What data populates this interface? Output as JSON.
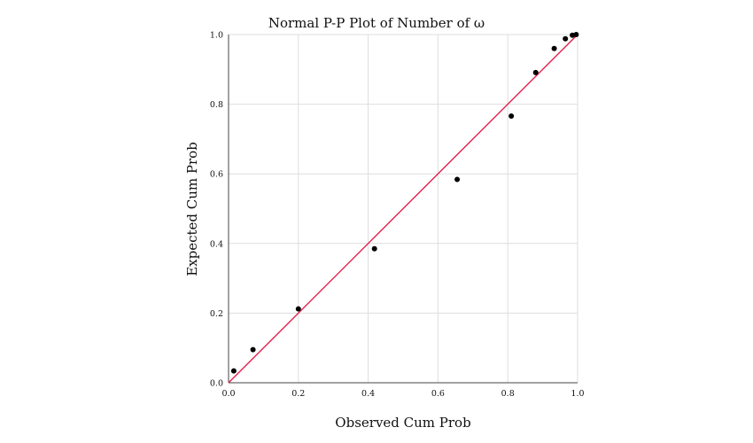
{
  "chart_data": {
    "type": "scatter",
    "title": "Normal P-P Plot of Number of ω",
    "xlabel": "Observed Cum Prob",
    "ylabel": "Expected Cum Prob",
    "xlim": [
      0.0,
      1.0
    ],
    "ylim": [
      0.0,
      1.0
    ],
    "x_ticks": [
      "0.0",
      "0.2",
      "0.4",
      "0.6",
      "0.8",
      "1.0"
    ],
    "y_ticks": [
      "0.0",
      "0.2",
      "0.4",
      "0.6",
      "0.8",
      "1.0"
    ],
    "grid": true,
    "reference_line": {
      "from": [
        0.0,
        0.0
      ],
      "to": [
        1.0,
        1.0
      ],
      "color": "#e0224f"
    },
    "points": [
      {
        "x": 0.015,
        "y": 0.034
      },
      {
        "x": 0.07,
        "y": 0.095
      },
      {
        "x": 0.2,
        "y": 0.212
      },
      {
        "x": 0.418,
        "y": 0.385
      },
      {
        "x": 0.655,
        "y": 0.584
      },
      {
        "x": 0.81,
        "y": 0.766
      },
      {
        "x": 0.88,
        "y": 0.891
      },
      {
        "x": 0.933,
        "y": 0.96
      },
      {
        "x": 0.965,
        "y": 0.988
      },
      {
        "x": 0.985,
        "y": 0.998
      },
      {
        "x": 0.996,
        "y": 1.0
      }
    ],
    "point_color": "#000000"
  }
}
